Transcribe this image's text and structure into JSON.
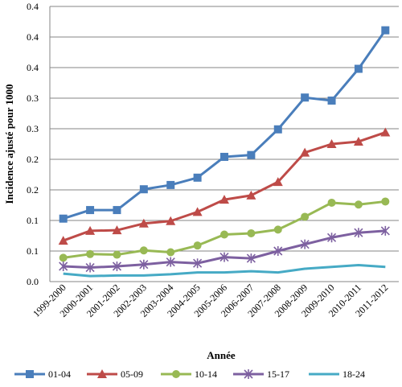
{
  "chart_data": {
    "type": "line",
    "title": "",
    "xlabel": "Année",
    "ylabel": "Incidence ajusté pour 1000",
    "categories": [
      "1999-2000",
      "2000-2001",
      "2001-2002",
      "2002-2003",
      "2003-2004",
      "2004-2005",
      "2005-2006",
      "2006-2007",
      "2007-2008",
      "2008-2009",
      "2009-2010",
      "2010-2011",
      "2011-2012"
    ],
    "ylim": [
      0,
      0.45
    ],
    "y_ticks": [
      0,
      0.05,
      0.1,
      0.15,
      0.2,
      0.25,
      0.3,
      0.35,
      0.4,
      0.45
    ],
    "y_tick_labels": [
      "0.0",
      "0.1",
      "0.1",
      "0.2",
      "0.2",
      "0.3",
      "0.3",
      "0.4",
      "0.4",
      "0.4"
    ],
    "grid": true,
    "legend_position": "bottom",
    "series": [
      {
        "name": "01-04",
        "color": "#4a7ebb",
        "marker": "square",
        "values": [
          0.103,
          0.117,
          0.117,
          0.151,
          0.158,
          0.17,
          0.204,
          0.207,
          0.249,
          0.301,
          0.296,
          0.348,
          0.411
        ]
      },
      {
        "name": "05-09",
        "color": "#be4b48",
        "marker": "triangle",
        "values": [
          0.067,
          0.083,
          0.084,
          0.095,
          0.099,
          0.114,
          0.134,
          0.141,
          0.163,
          0.211,
          0.225,
          0.229,
          0.244
        ]
      },
      {
        "name": "10-14",
        "color": "#98b954",
        "marker": "circle",
        "values": [
          0.039,
          0.045,
          0.044,
          0.051,
          0.048,
          0.059,
          0.077,
          0.079,
          0.085,
          0.106,
          0.129,
          0.126,
          0.131
        ]
      },
      {
        "name": "15-17",
        "color": "#7d60a0",
        "marker": "star",
        "values": [
          0.025,
          0.023,
          0.025,
          0.028,
          0.032,
          0.03,
          0.04,
          0.038,
          0.05,
          0.061,
          0.072,
          0.08,
          0.083
        ]
      },
      {
        "name": "18-24",
        "color": "#46aac5",
        "marker": "none",
        "values": [
          0.013,
          0.009,
          0.01,
          0.01,
          0.012,
          0.015,
          0.015,
          0.017,
          0.015,
          0.021,
          0.024,
          0.027,
          0.024
        ]
      }
    ]
  }
}
